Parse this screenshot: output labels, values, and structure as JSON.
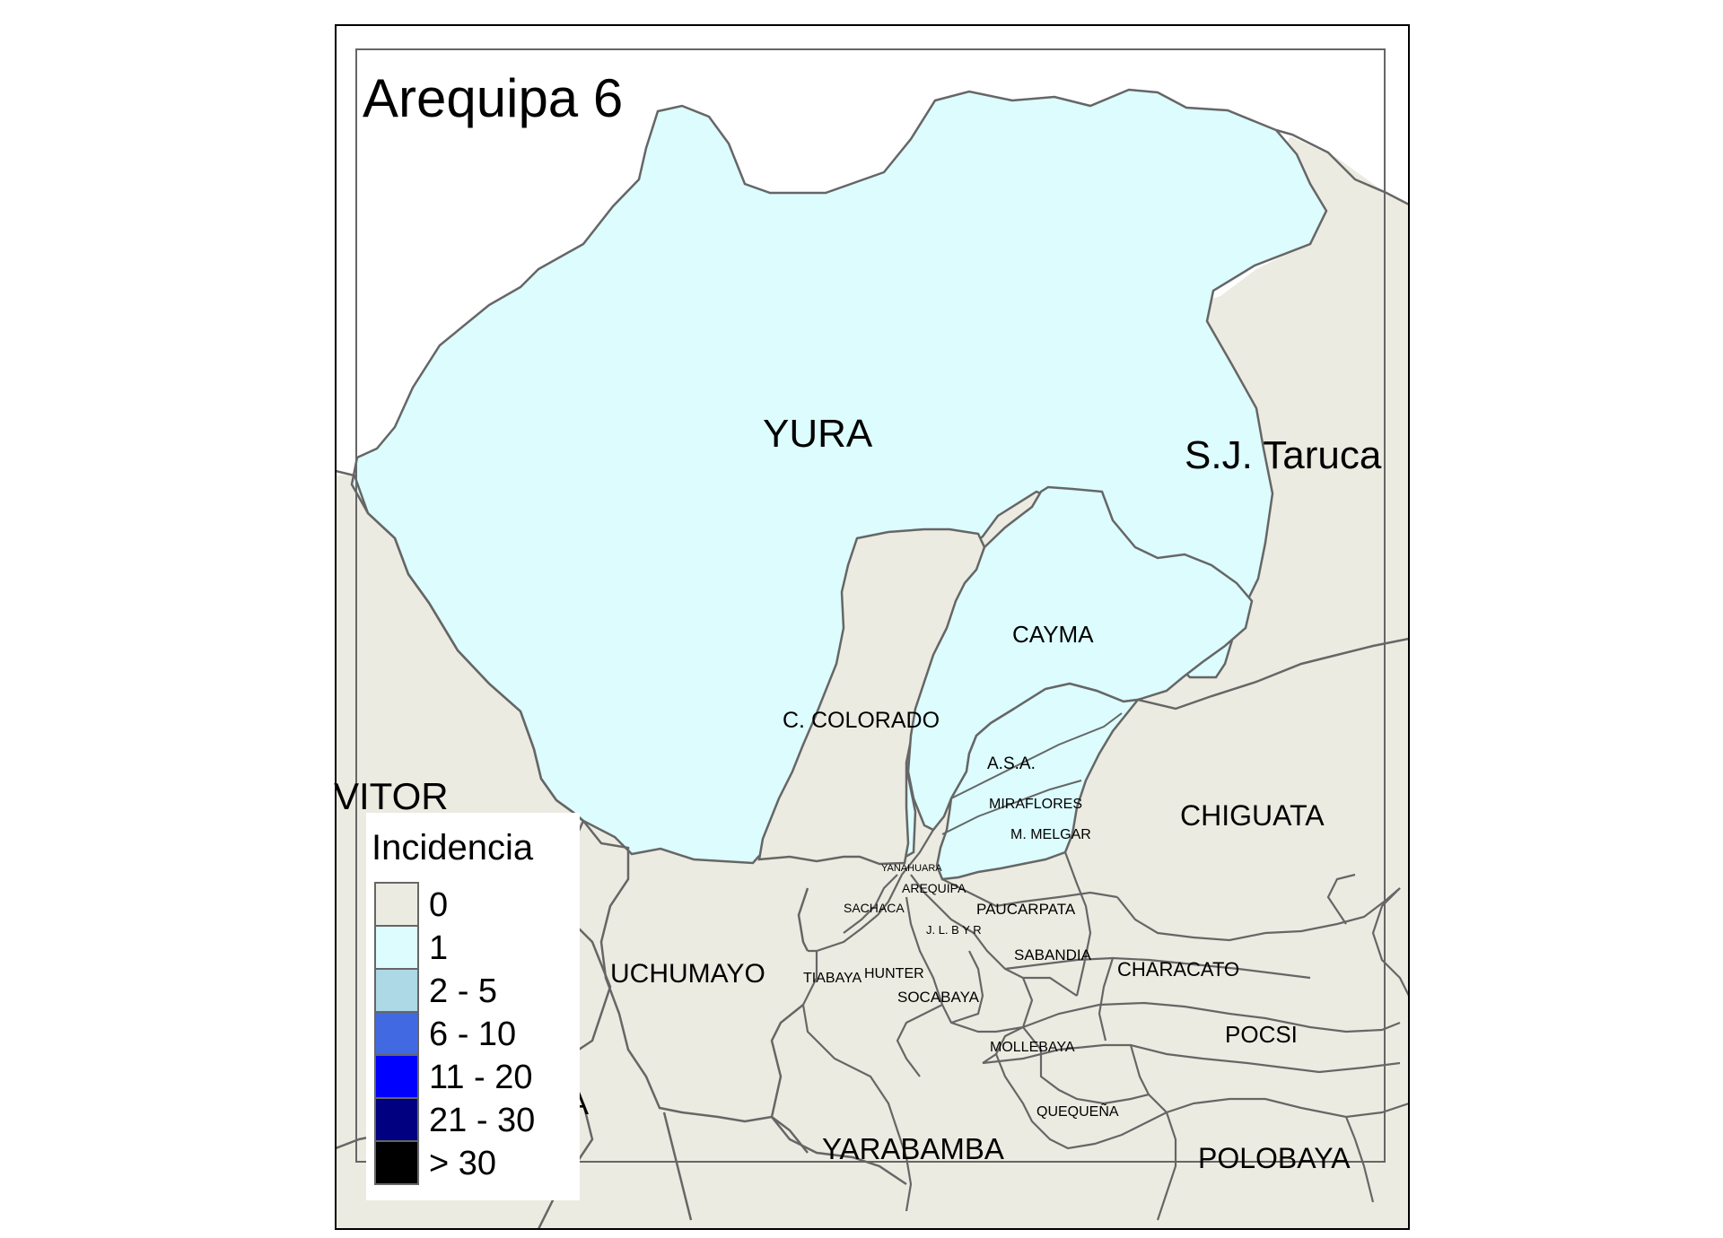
{
  "map": {
    "title": "Arequipa 6",
    "colors": {
      "background_region": "#ecebe1",
      "highlight_region": "#dcfcfe",
      "boundary": "#666666",
      "frame": "#000000"
    },
    "highlighted_districts": [
      "YURA",
      "CAYMA",
      "A.S.A.",
      "MIRAFLORES",
      "M. MELGAR"
    ],
    "labels": {
      "yura": "YURA",
      "sj_tarucani": "S.J. Taruca",
      "cayma": "CAYMA",
      "c_colorado": "C. COLORADO",
      "asa": "A.S.A.",
      "vitor": "VITOR",
      "miraflores": "MIRAFLORES",
      "m_melgar": "M. MELGAR",
      "chiguata": "CHIGUATA",
      "yanahuara": "YANAHUARA",
      "arequipa": "AREQUIPA",
      "sachaca": "SACHACA",
      "paucarpata": "PAUCARPATA",
      "jlbyr": "J. L. B Y R",
      "sabandia": "SABANDIA",
      "characato": "CHARACATO",
      "uchumayo": "UCHUMAYO",
      "tiabaya": "TIABAYA",
      "hunter": "HUNTER",
      "socabaya": "SOCABAYA",
      "pocsi": "POCSI",
      "mollebaya": "MOLLEBAYA",
      "quequena": "QUEQUEÑA",
      "yarabamba": "YARABAMBA",
      "polobaya": "POLOBAYA",
      "partial_a": "A"
    }
  },
  "legend": {
    "title": "Incidencia",
    "items": [
      {
        "label": "0",
        "color": "#ecebe1"
      },
      {
        "label": "1",
        "color": "#dcfcfe"
      },
      {
        "label": "2 - 5",
        "color": "#add8e6"
      },
      {
        "label": "6 - 10",
        "color": "#4169e1"
      },
      {
        "label": "11 - 20",
        "color": "#0000fe"
      },
      {
        "label": "21 - 30",
        "color": "#000080"
      },
      {
        "label": "> 30",
        "color": "#000000"
      }
    ]
  }
}
